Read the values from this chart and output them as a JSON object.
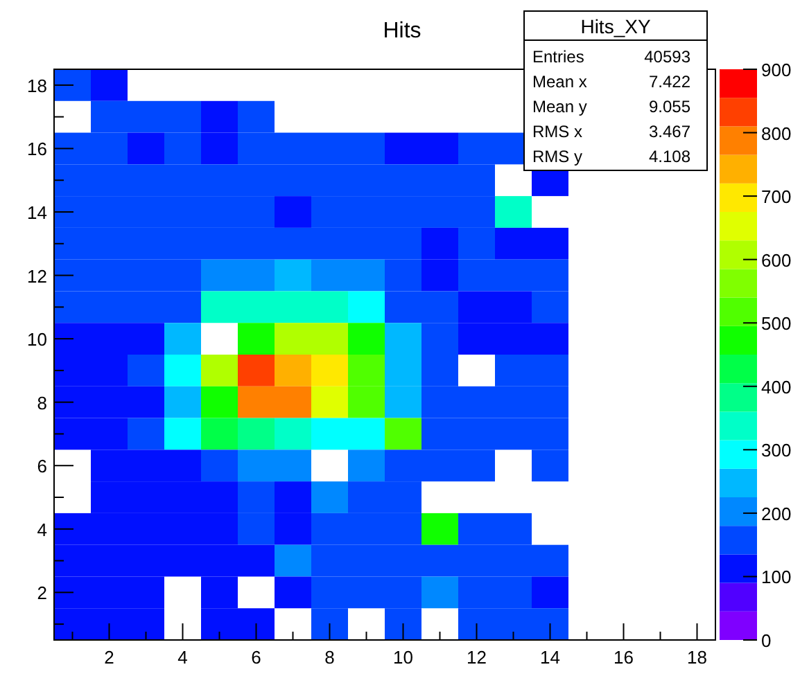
{
  "chart_data": {
    "type": "heatmap",
    "title": "Hits",
    "categories": [
      null,
      "2",
      null,
      "4",
      null,
      "6",
      null,
      "8",
      null,
      "10",
      null,
      "12",
      null,
      "14",
      null,
      "16",
      null,
      "18"
    ],
    "y_categories": [
      "18",
      null,
      "16",
      null,
      "14",
      null,
      "12",
      null,
      "10",
      null,
      "8",
      null,
      "6",
      null,
      "4",
      null,
      "2",
      null
    ],
    "cells": [
      [
        160,
        110,
        null,
        null,
        null,
        null,
        null,
        null,
        null,
        null,
        null,
        null,
        null,
        null,
        null,
        null,
        null,
        null
      ],
      [
        null,
        160,
        160,
        160,
        110,
        160,
        null,
        null,
        null,
        null,
        null,
        null,
        null,
        null,
        null,
        null,
        null,
        null
      ],
      [
        160,
        160,
        110,
        160,
        110,
        160,
        160,
        160,
        160,
        110,
        110,
        160,
        160,
        null,
        null,
        null,
        null,
        null
      ],
      [
        160,
        160,
        160,
        160,
        160,
        160,
        160,
        160,
        160,
        160,
        160,
        160,
        null,
        110,
        null,
        null,
        null,
        null
      ],
      [
        160,
        160,
        160,
        160,
        160,
        160,
        110,
        160,
        160,
        160,
        160,
        160,
        340,
        null,
        null,
        null,
        null,
        null
      ],
      [
        160,
        160,
        160,
        160,
        160,
        160,
        160,
        160,
        160,
        160,
        110,
        160,
        110,
        110,
        null,
        null,
        null,
        null
      ],
      [
        160,
        160,
        160,
        160,
        200,
        200,
        250,
        200,
        200,
        160,
        110,
        160,
        160,
        160,
        null,
        null,
        null,
        null
      ],
      [
        160,
        160,
        160,
        160,
        340,
        340,
        340,
        340,
        290,
        160,
        160,
        110,
        110,
        160,
        null,
        null,
        null,
        null
      ],
      [
        110,
        110,
        110,
        250,
        null,
        470,
        590,
        590,
        470,
        250,
        160,
        110,
        110,
        110,
        null,
        null,
        null,
        null
      ],
      [
        110,
        110,
        160,
        290,
        590,
        830,
        740,
        700,
        520,
        250,
        160,
        null,
        160,
        160,
        null,
        null,
        null,
        null
      ],
      [
        110,
        110,
        110,
        250,
        470,
        790,
        790,
        650,
        520,
        250,
        160,
        160,
        160,
        160,
        null,
        null,
        null,
        null
      ],
      [
        110,
        110,
        160,
        290,
        430,
        380,
        340,
        290,
        290,
        520,
        160,
        160,
        160,
        160,
        null,
        null,
        null,
        null
      ],
      [
        null,
        110,
        110,
        110,
        160,
        200,
        200,
        null,
        200,
        160,
        160,
        160,
        null,
        160,
        null,
        null,
        null,
        null
      ],
      [
        null,
        110,
        110,
        110,
        110,
        160,
        110,
        200,
        160,
        160,
        null,
        null,
        null,
        null,
        null,
        null,
        null,
        null
      ],
      [
        110,
        110,
        110,
        110,
        110,
        160,
        110,
        160,
        160,
        160,
        470,
        160,
        160,
        null,
        null,
        null,
        null,
        null
      ],
      [
        110,
        110,
        110,
        110,
        110,
        110,
        200,
        160,
        160,
        160,
        160,
        160,
        160,
        160,
        null,
        null,
        null,
        null
      ],
      [
        110,
        110,
        110,
        null,
        110,
        null,
        110,
        160,
        160,
        160,
        200,
        160,
        160,
        110,
        null,
        null,
        null,
        null
      ],
      [
        110,
        110,
        110,
        null,
        110,
        110,
        null,
        160,
        null,
        160,
        null,
        160,
        160,
        160,
        null,
        null,
        null,
        null
      ]
    ],
    "clim": [
      0,
      900
    ],
    "cticks": [
      0,
      100,
      200,
      300,
      400,
      500,
      600,
      700,
      800,
      900
    ],
    "annotations": [
      "Hits_XY",
      "Entries  40593",
      "Mean x  7.422",
      "Mean y  9.055",
      "RMS x  3.467",
      "RMS y  4.108"
    ]
  }
}
